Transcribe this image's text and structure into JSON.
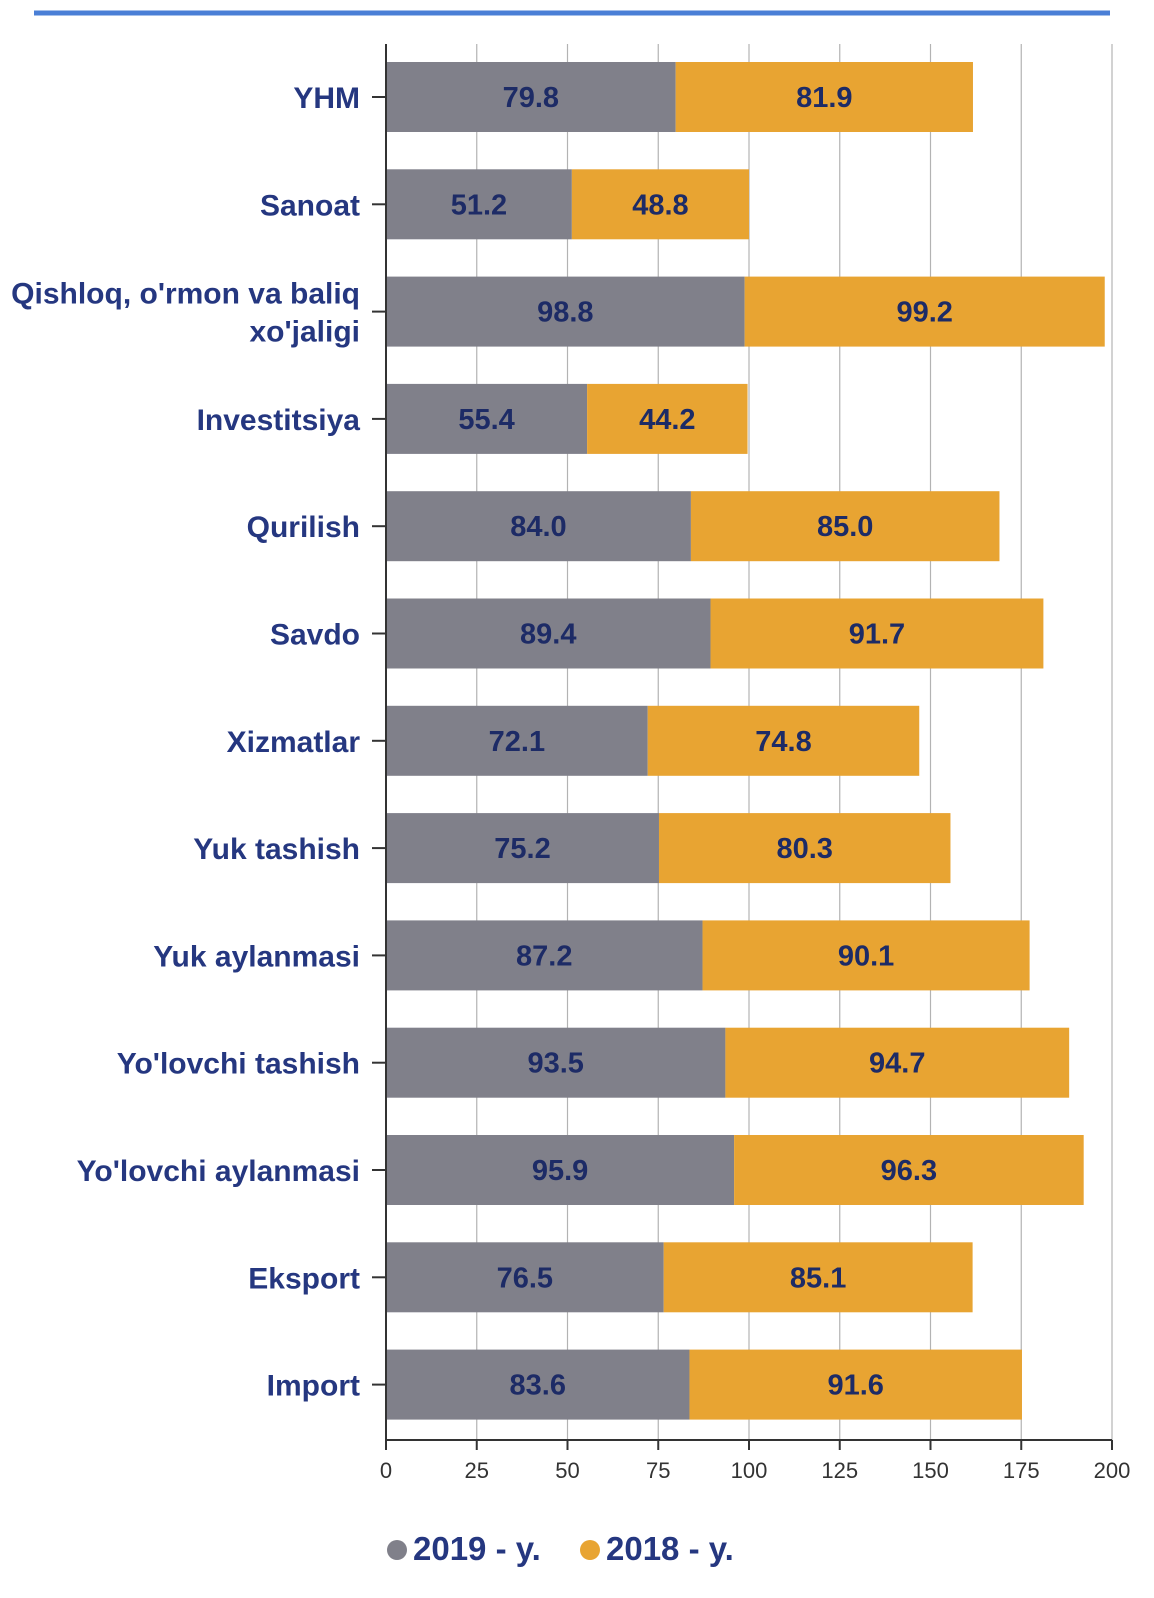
{
  "colors": {
    "accent_line": "#4a7fd6",
    "series_2019": "#80808a",
    "series_2018": "#e8a432",
    "label_text": "#253780",
    "bar_text": "#1d2b66",
    "grid": "#b3b3b3",
    "axis": "#333333"
  },
  "chart_data": {
    "type": "bar",
    "orientation": "horizontal",
    "stacked": true,
    "categories": [
      "YHM",
      "Sanoat",
      [
        "Qishloq, o'rmon va baliq",
        "xo'jaligi"
      ],
      "Investitsiya",
      "Qurilish",
      "Savdo",
      "Xizmatlar",
      "Yuk tashish",
      "Yuk aylanmasi",
      "Yo'lovchi tashish",
      "Yo'lovchi aylanmasi",
      "Eksport",
      "Import"
    ],
    "series": [
      {
        "name": "2019 - y.",
        "color": "#80808a",
        "values": [
          79.8,
          51.2,
          98.8,
          55.4,
          84.0,
          89.4,
          72.1,
          75.2,
          87.2,
          93.5,
          95.9,
          76.5,
          83.6
        ],
        "labels": [
          "79.8",
          "51.2",
          "98.8",
          "55.4",
          "84.0",
          "89.4",
          "72.1",
          "75.2",
          "87.2",
          "93.5",
          "95.9",
          "76.5",
          "83.6"
        ]
      },
      {
        "name": "2018 - y.",
        "color": "#e8a432",
        "values": [
          81.9,
          48.8,
          99.2,
          44.2,
          85.0,
          91.7,
          74.8,
          80.3,
          90.1,
          94.7,
          96.3,
          85.1,
          91.6
        ],
        "labels": [
          "81.9",
          "48.8",
          "99.2",
          "44.2",
          "85.0",
          "91.7",
          "74.8",
          "80.3",
          "90.1",
          "94.7",
          "96.3",
          "85.1",
          "91.6"
        ]
      }
    ],
    "xlim": [
      0,
      200
    ],
    "xticks": [
      0,
      25,
      50,
      75,
      100,
      125,
      150,
      175,
      200
    ],
    "grid": true,
    "legend_position": "bottom",
    "title": "",
    "xlabel": "",
    "ylabel": ""
  }
}
